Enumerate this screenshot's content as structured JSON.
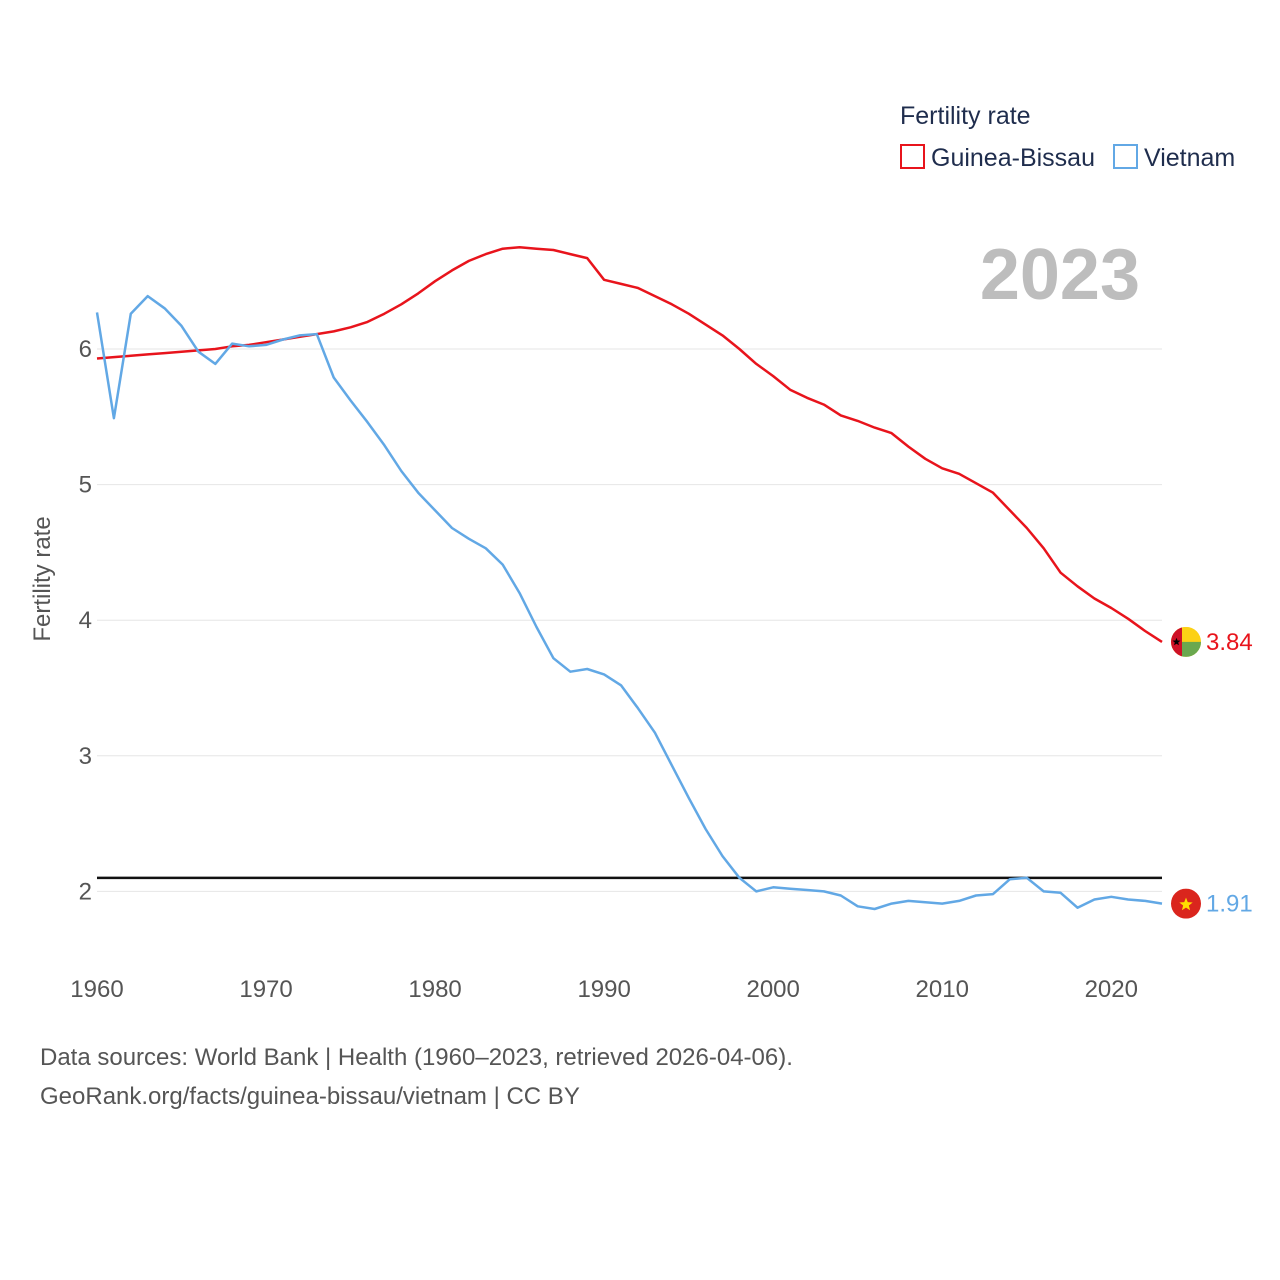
{
  "chart_data": {
    "type": "line",
    "legend_title": "Fertility rate",
    "ylabel": "Fertility rate",
    "year_label": "2023",
    "x_range": [
      1960,
      2023
    ],
    "ylim": [
      1.5,
      6.9
    ],
    "x_ticks": [
      1960,
      1970,
      1980,
      1990,
      2000,
      2010,
      2020
    ],
    "y_ticks": [
      2,
      3,
      4,
      5,
      6
    ],
    "reference_line": 2.1,
    "legend_position": "top-right",
    "series": [
      {
        "name": "Guinea-Bissau",
        "color": "#e8141c",
        "end_label": "3.84",
        "flag": "guinea-bissau-flag",
        "x": [
          1960,
          1961,
          1962,
          1963,
          1964,
          1965,
          1966,
          1967,
          1968,
          1969,
          1970,
          1971,
          1972,
          1973,
          1974,
          1975,
          1976,
          1977,
          1978,
          1979,
          1980,
          1981,
          1982,
          1983,
          1984,
          1985,
          1986,
          1987,
          1988,
          1989,
          1990,
          1991,
          1992,
          1993,
          1994,
          1995,
          1996,
          1997,
          1998,
          1999,
          2000,
          2001,
          2002,
          2003,
          2004,
          2005,
          2006,
          2007,
          2008,
          2009,
          2010,
          2011,
          2012,
          2013,
          2014,
          2015,
          2016,
          2017,
          2018,
          2019,
          2020,
          2021,
          2022,
          2023
        ],
        "values": [
          5.93,
          5.94,
          5.95,
          5.96,
          5.97,
          5.98,
          5.99,
          6.0,
          6.02,
          6.03,
          6.05,
          6.07,
          6.09,
          6.11,
          6.13,
          6.16,
          6.2,
          6.26,
          6.33,
          6.41,
          6.5,
          6.58,
          6.65,
          6.7,
          6.74,
          6.75,
          6.74,
          6.73,
          6.7,
          6.67,
          6.51,
          6.48,
          6.45,
          6.39,
          6.33,
          6.26,
          6.18,
          6.1,
          6.0,
          5.89,
          5.8,
          5.7,
          5.64,
          5.59,
          5.51,
          5.47,
          5.42,
          5.38,
          5.28,
          5.19,
          5.12,
          5.08,
          5.01,
          4.94,
          4.81,
          4.68,
          4.53,
          4.35,
          4.25,
          4.16,
          4.09,
          4.01,
          3.92,
          3.84
        ]
      },
      {
        "name": "Vietnam",
        "color": "#62a8e5",
        "end_label": "1.91",
        "flag": "vietnam-flag",
        "x": [
          1960,
          1961,
          1962,
          1963,
          1964,
          1965,
          1966,
          1967,
          1968,
          1969,
          1970,
          1971,
          1972,
          1973,
          1974,
          1975,
          1976,
          1977,
          1978,
          1979,
          1980,
          1981,
          1982,
          1983,
          1984,
          1985,
          1986,
          1987,
          1988,
          1989,
          1990,
          1991,
          1992,
          1993,
          1994,
          1995,
          1996,
          1997,
          1998,
          1999,
          2000,
          2001,
          2002,
          2003,
          2004,
          2005,
          2006,
          2007,
          2008,
          2009,
          2010,
          2011,
          2012,
          2013,
          2014,
          2015,
          2016,
          2017,
          2018,
          2019,
          2020,
          2021,
          2022,
          2023
        ],
        "values": [
          6.27,
          5.49,
          6.26,
          6.39,
          6.3,
          6.17,
          5.98,
          5.89,
          6.04,
          6.02,
          6.03,
          6.07,
          6.1,
          6.11,
          5.79,
          5.62,
          5.46,
          5.29,
          5.1,
          4.94,
          4.81,
          4.68,
          4.6,
          4.53,
          4.41,
          4.2,
          3.95,
          3.72,
          3.62,
          3.64,
          3.6,
          3.52,
          3.35,
          3.17,
          2.93,
          2.69,
          2.46,
          2.26,
          2.1,
          2.0,
          2.03,
          2.02,
          2.01,
          2.0,
          1.97,
          1.89,
          1.87,
          1.91,
          1.93,
          1.92,
          1.91,
          1.93,
          1.97,
          1.98,
          2.09,
          2.1,
          2.0,
          1.99,
          1.88,
          1.94,
          1.96,
          1.94,
          1.93,
          1.91
        ]
      }
    ]
  },
  "source": {
    "line1": "Data sources: World Bank | Health (1960–2023, retrieved 2026-04-06).",
    "line2": "GeoRank.org/facts/guinea-bissau/vietnam | CC BY"
  }
}
